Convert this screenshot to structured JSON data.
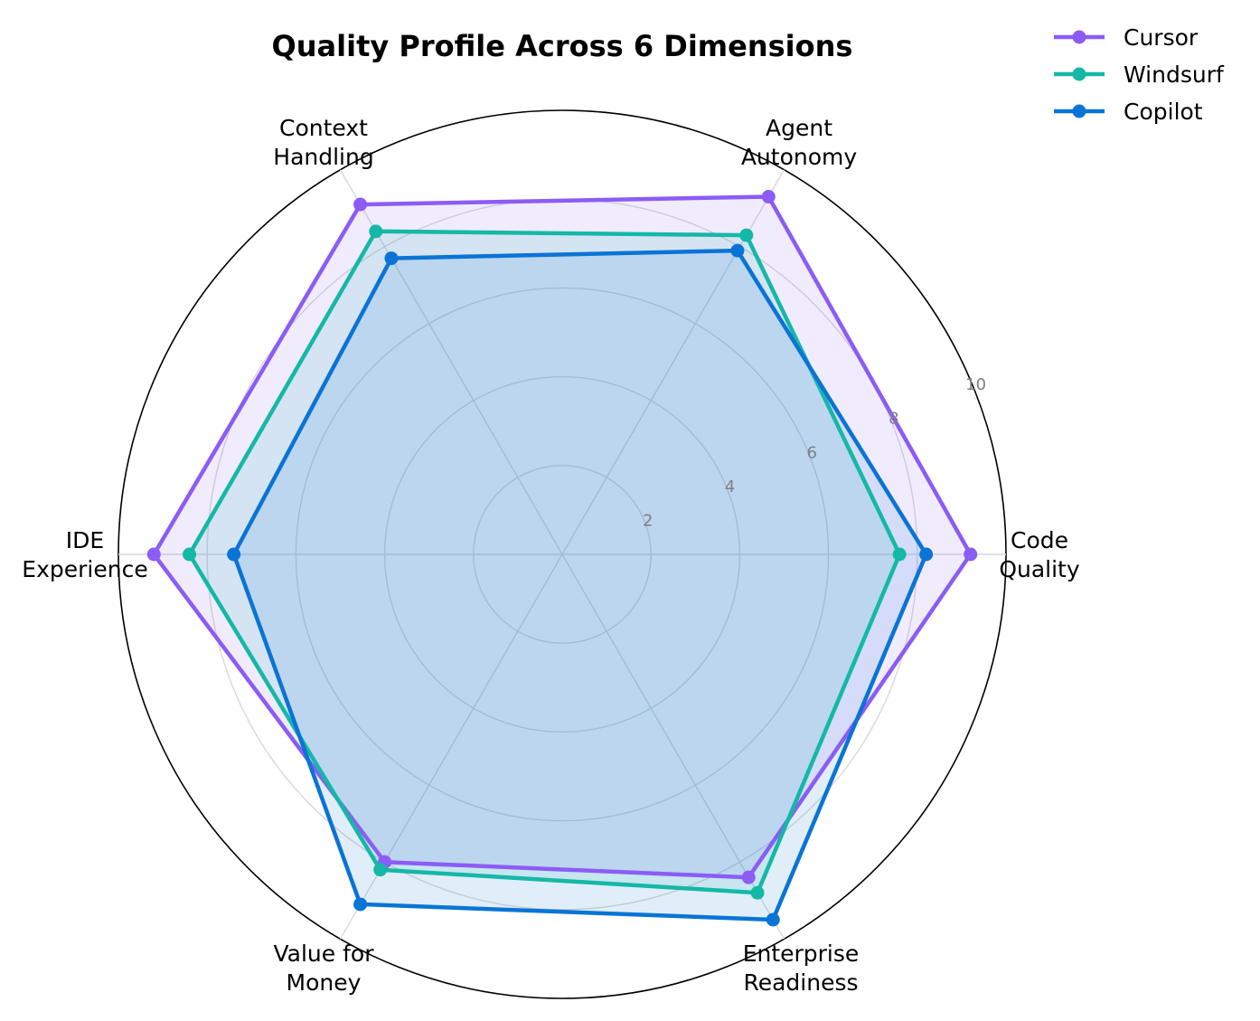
{
  "chart_data": {
    "type": "radar",
    "title": "Quality Profile Across 6 Dimensions",
    "axes": [
      {
        "lines": [
          "Code",
          "Quality"
        ]
      },
      {
        "lines": [
          "Agent",
          "Autonomy"
        ]
      },
      {
        "lines": [
          "Context",
          "Handling"
        ]
      },
      {
        "lines": [
          "IDE",
          "Experience"
        ]
      },
      {
        "lines": [
          "Value for",
          "Money"
        ]
      },
      {
        "lines": [
          "Enterprise",
          "Readiness"
        ]
      }
    ],
    "rlim": [
      0,
      10
    ],
    "rticks": [
      "2",
      "4",
      "6",
      "8",
      "10"
    ],
    "grid": true,
    "legend_position": "top-right",
    "series": [
      {
        "name": "Cursor",
        "color": "#8b5cf6",
        "values": [
          9.2,
          9.3,
          9.1,
          9.2,
          8.0,
          8.4
        ]
      },
      {
        "name": "Windsurf",
        "color": "#14b8a6",
        "values": [
          7.6,
          8.3,
          8.4,
          8.4,
          8.2,
          8.8
        ]
      },
      {
        "name": "Copilot",
        "color": "#0a74d6",
        "values": [
          8.2,
          7.9,
          7.7,
          7.4,
          9.1,
          9.5
        ]
      }
    ]
  }
}
